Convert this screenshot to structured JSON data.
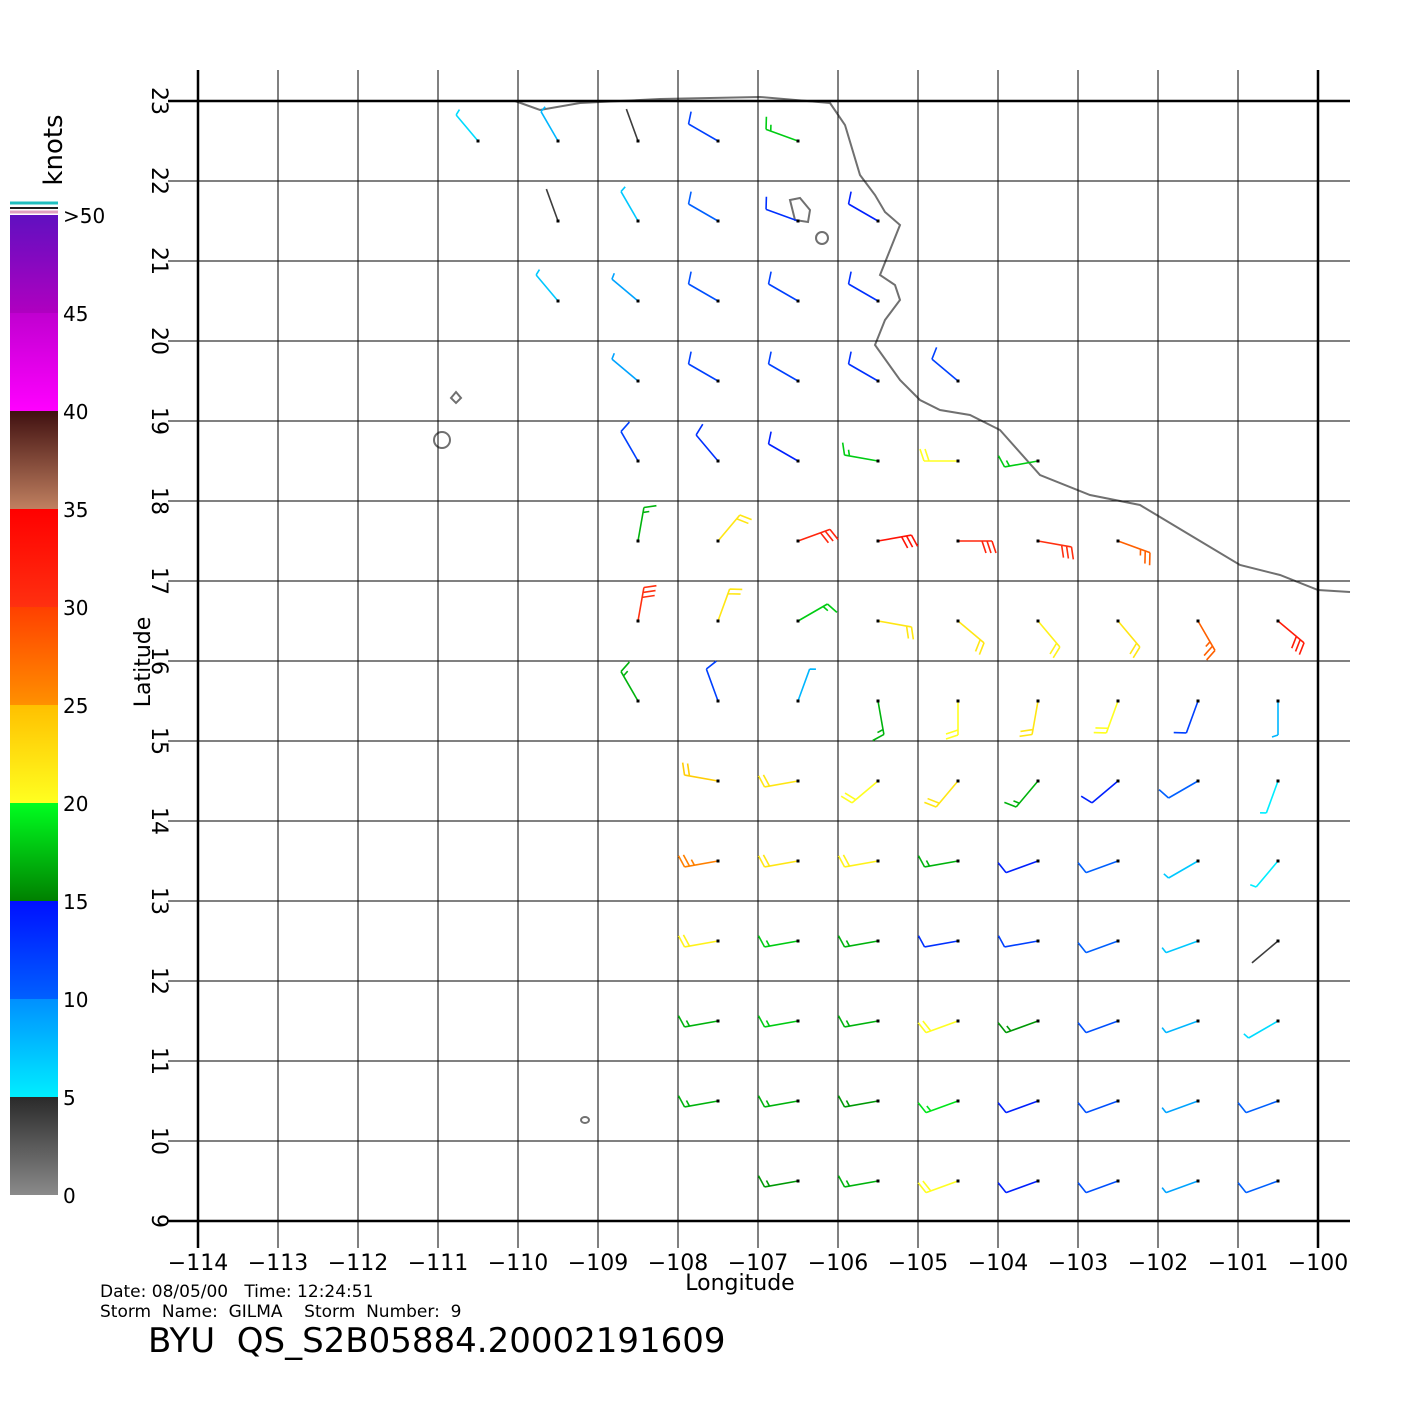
{
  "map": {
    "title": "BYU  QS_S2B05884.20002191609",
    "date_line": "Date: 08/05/00   Time: 12:24:51",
    "storm_line": "Storm  Name:  GILMA    Storm  Number:  9",
    "x_label": "Longitude",
    "y_label": "Latitude",
    "xlim": [
      -114,
      -100
    ],
    "ylim": [
      9,
      23
    ],
    "xticks": [
      {
        "value": -114,
        "label": "−114"
      },
      {
        "value": -113,
        "label": "−113"
      },
      {
        "value": -112,
        "label": "−112"
      },
      {
        "value": -111,
        "label": "−111"
      },
      {
        "value": -110,
        "label": "−110"
      },
      {
        "value": -109,
        "label": "−109"
      },
      {
        "value": -108,
        "label": "−108"
      },
      {
        "value": -107,
        "label": "−107"
      },
      {
        "value": -106,
        "label": "−106"
      },
      {
        "value": -105,
        "label": "−105"
      },
      {
        "value": -104,
        "label": "−104"
      },
      {
        "value": -103,
        "label": "−103"
      },
      {
        "value": -102,
        "label": "−102"
      },
      {
        "value": -101,
        "label": "−101"
      },
      {
        "value": -100,
        "label": "−100"
      }
    ],
    "yticks": [
      9,
      10,
      11,
      12,
      13,
      14,
      15,
      16,
      17,
      18,
      19,
      20,
      21,
      22,
      23
    ],
    "colorbar": {
      "label": "knots",
      "lim": [
        0,
        50
      ],
      "bins": [
        0,
        5,
        10,
        15,
        20,
        25,
        30,
        35,
        40,
        45,
        50
      ],
      "colors": [
        [
          "#8a8a8a",
          "#2a2a2a"
        ],
        [
          "#00eeff",
          "#0090ff"
        ],
        [
          "#0060ff",
          "#0010ff"
        ],
        [
          "#008000",
          "#00ff20"
        ],
        [
          "#ffff20",
          "#ffc000"
        ],
        [
          "#ff9000",
          "#ff4000"
        ],
        [
          "#ff3010",
          "#ff0000"
        ],
        [
          "#c08060",
          "#401010"
        ],
        [
          "#ff00ff",
          "#c000d0"
        ],
        [
          "#b000c0",
          "#6010c0"
        ]
      ],
      "ticks": [
        0,
        5,
        10,
        15,
        20,
        25,
        30,
        35,
        40,
        45,
        {
          "value": 50,
          "label": ">50"
        }
      ]
    },
    "wind": {
      "lons": [
        -110.5,
        -109.5,
        -108.5,
        -107.5,
        -106.5,
        -105.5,
        -104.5,
        -103.5,
        -102.5,
        -101.5,
        -100.5
      ],
      "lats": [
        22.5,
        21.5,
        20.5,
        19.5,
        18.5,
        17.5,
        16.5,
        15.5,
        14.5,
        13.5,
        12.5,
        11.5,
        10.5,
        9.5
      ],
      "speed": [
        [
          6,
          8,
          4,
          12,
          18,
          null,
          null,
          null,
          null,
          null,
          null
        ],
        [
          null,
          4,
          7,
          10,
          13,
          14,
          null,
          null,
          null,
          null,
          null
        ],
        [
          null,
          7,
          9,
          11,
          12,
          13,
          null,
          null,
          null,
          null,
          null
        ],
        [
          null,
          null,
          9,
          12,
          12,
          13,
          12,
          null,
          null,
          null,
          null
        ],
        [
          null,
          null,
          12,
          13,
          14,
          18,
          20,
          18,
          null,
          null,
          null
        ],
        [
          null,
          null,
          17,
          22,
          31,
          33,
          31,
          30,
          28,
          null,
          null
        ],
        [
          null,
          null,
          30,
          22,
          18,
          22,
          22,
          21,
          22,
          28,
          32
        ],
        [
          null,
          null,
          17,
          12,
          8,
          17,
          20,
          22,
          20,
          12,
          8
        ],
        [
          null,
          null,
          null,
          24,
          22,
          20,
          22,
          17,
          14,
          10,
          5
        ],
        [
          null,
          null,
          null,
          26,
          22,
          21,
          17,
          14,
          10,
          7,
          5
        ],
        [
          null,
          null,
          null,
          21,
          18,
          17,
          13,
          12,
          10,
          7,
          4
        ],
        [
          null,
          null,
          null,
          17,
          18,
          17,
          20,
          16,
          11,
          8,
          6
        ],
        [
          null,
          null,
          null,
          17,
          17,
          16,
          19,
          14,
          11,
          9,
          10
        ],
        [
          null,
          null,
          null,
          null,
          16,
          17,
          20,
          14,
          11,
          9,
          10
        ]
      ],
      "direction": [
        [
          320,
          330,
          340,
          300,
          290,
          null,
          null,
          null,
          null,
          null,
          null
        ],
        [
          null,
          340,
          330,
          300,
          290,
          300,
          null,
          null,
          null,
          null,
          null
        ],
        [
          null,
          320,
          310,
          300,
          300,
          300,
          null,
          null,
          null,
          null,
          null
        ],
        [
          null,
          null,
          310,
          300,
          300,
          300,
          310,
          null,
          null,
          null,
          null
        ],
        [
          null,
          null,
          330,
          320,
          300,
          280,
          270,
          260,
          null,
          null,
          null
        ],
        [
          null,
          null,
          10,
          40,
          70,
          80,
          90,
          100,
          110,
          null,
          null
        ],
        [
          null,
          null,
          10,
          20,
          60,
          100,
          130,
          140,
          140,
          150,
          130
        ],
        [
          null,
          null,
          330,
          340,
          20,
          170,
          180,
          190,
          200,
          200,
          180
        ],
        [
          null,
          null,
          null,
          280,
          260,
          230,
          220,
          220,
          230,
          240,
          200
        ],
        [
          null,
          null,
          null,
          260,
          260,
          260,
          260,
          250,
          250,
          240,
          220
        ],
        [
          null,
          null,
          null,
          260,
          260,
          260,
          260,
          260,
          250,
          250,
          230
        ],
        [
          null,
          null,
          null,
          260,
          260,
          260,
          250,
          250,
          250,
          250,
          240
        ],
        [
          null,
          null,
          null,
          260,
          260,
          260,
          250,
          250,
          250,
          250,
          250
        ],
        [
          null,
          null,
          null,
          null,
          260,
          260,
          250,
          250,
          250,
          250,
          250
        ]
      ]
    }
  }
}
